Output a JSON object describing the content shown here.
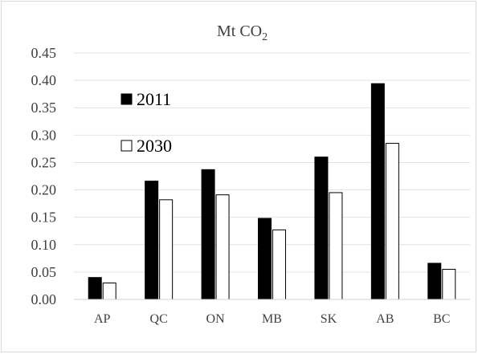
{
  "chart_data": {
    "type": "bar",
    "title_main": "Mt CO",
    "title_sub": "2",
    "categories": [
      "AP",
      "QC",
      "ON",
      "MB",
      "SK",
      "AB",
      "BC"
    ],
    "series": [
      {
        "name": "2011",
        "values": [
          0.04,
          0.216,
          0.237,
          0.148,
          0.26,
          0.394,
          0.066
        ],
        "color": "#000000"
      },
      {
        "name": "2030",
        "values": [
          0.03,
          0.182,
          0.191,
          0.127,
          0.195,
          0.285,
          0.055
        ],
        "color": "#ffffff"
      }
    ],
    "yticks": [
      "0.00",
      "0.05",
      "0.10",
      "0.15",
      "0.20",
      "0.25",
      "0.30",
      "0.35",
      "0.40",
      "0.45"
    ],
    "ylim": [
      0,
      0.45
    ],
    "grid": true,
    "legend_position": "top-left"
  }
}
